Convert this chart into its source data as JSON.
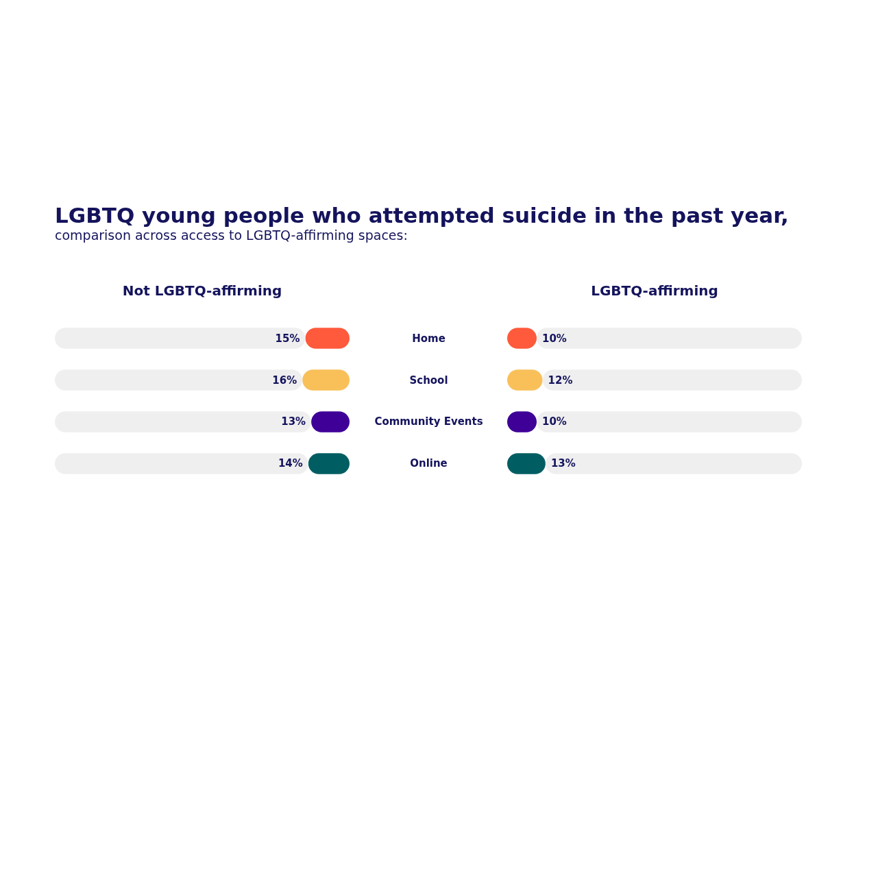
{
  "chart_data": [
    {
      "type": "bar",
      "orientation": "horizontal",
      "stacked": true,
      "title": "LGBTQ young people who attempted suicide in the past year,",
      "subtitle": "comparison across access to LGBTQ-affirming spaces:",
      "categories": [
        "Home",
        "School",
        "Community Events",
        "Online"
      ],
      "xlim": [
        100,
        0
      ],
      "tick_labels": "y",
      "legend": false,
      "grid": false,
      "series": [
        {
          "name": "Not LGBTQ-affirming",
          "colors": [
            "#ff5a3c",
            "#f9c05a",
            "#3f0097",
            "#005e63"
          ],
          "values": [
            15,
            16,
            13,
            14
          ],
          "value_labels": [
            "15%",
            "16%",
            "13%",
            "14%"
          ]
        },
        {
          "color": "#efefef",
          "values": [
            85,
            84,
            87,
            86
          ]
        }
      ]
    },
    {
      "type": "bar",
      "orientation": "horizontal",
      "stacked": true,
      "categories": [
        null,
        null,
        null,
        null
      ],
      "xlim": [
        0,
        100
      ],
      "tick_labels": false,
      "legend": false,
      "grid": false,
      "series": [
        {
          "name": "LGBTQ-affirming",
          "colors": [
            "#ff5a3c",
            "#f9c05a",
            "#3f0097",
            "#005e63"
          ],
          "values": [
            10,
            12,
            10,
            13
          ],
          "value_labels": [
            "10%",
            "12%",
            "10%",
            "13%"
          ]
        },
        {
          "color": "#efefef",
          "values": [
            90,
            88,
            90,
            87
          ]
        }
      ]
    }
  ]
}
